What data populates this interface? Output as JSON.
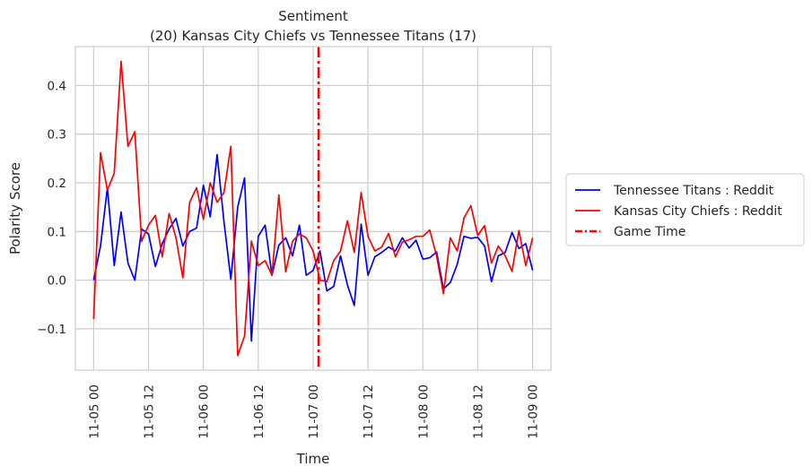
{
  "chart_data": {
    "type": "line",
    "title": "Sentiment",
    "subtitle": "(20) Kansas City Chiefs vs Tennessee Titans (17)",
    "xlabel": "Time",
    "ylabel": "Polarity Score",
    "grid": true,
    "legend_position": "right",
    "x_units": "hours from 11-05 00",
    "xlim": [
      -4,
      100
    ],
    "ylim": [
      -0.185,
      0.48
    ],
    "x_ticks": [
      {
        "value": 0,
        "label": "11-05 00"
      },
      {
        "value": 12,
        "label": "11-05 12"
      },
      {
        "value": 24,
        "label": "11-06 00"
      },
      {
        "value": 36,
        "label": "11-06 12"
      },
      {
        "value": 48,
        "label": "11-07 00"
      },
      {
        "value": 60,
        "label": "11-07 12"
      },
      {
        "value": 72,
        "label": "11-08 00"
      },
      {
        "value": 84,
        "label": "11-08 12"
      },
      {
        "value": 96,
        "label": "11-09 00"
      }
    ],
    "y_ticks": [
      {
        "value": -0.1,
        "label": "−0.1"
      },
      {
        "value": 0.0,
        "label": "0.0"
      },
      {
        "value": 0.1,
        "label": "0.1"
      },
      {
        "value": 0.2,
        "label": "0.2"
      },
      {
        "value": 0.3,
        "label": "0.3"
      },
      {
        "value": 0.4,
        "label": "0.4"
      }
    ],
    "series": [
      {
        "name": "Tennessee Titans : Reddit",
        "color": "#0000ff",
        "points": [
          [
            0,
            0.0
          ],
          [
            1.5,
            0.07
          ],
          [
            3,
            0.19
          ],
          [
            4.5,
            0.03
          ],
          [
            6,
            0.14
          ],
          [
            7.5,
            0.035
          ],
          [
            9,
            0.0
          ],
          [
            10.5,
            0.105
          ],
          [
            12,
            0.095
          ],
          [
            13.5,
            0.028
          ],
          [
            15,
            0.075
          ],
          [
            16.5,
            0.105
          ],
          [
            18,
            0.127
          ],
          [
            19.5,
            0.07
          ],
          [
            21,
            0.1
          ],
          [
            22.5,
            0.107
          ],
          [
            24,
            0.195
          ],
          [
            25.5,
            0.13
          ],
          [
            27,
            0.258
          ],
          [
            28.5,
            0.12
          ],
          [
            30,
            0.002
          ],
          [
            31.5,
            0.15
          ],
          [
            33,
            0.21
          ],
          [
            34.5,
            -0.125
          ],
          [
            36,
            0.09
          ],
          [
            37.5,
            0.113
          ],
          [
            39,
            0.01
          ],
          [
            40.5,
            0.072
          ],
          [
            42,
            0.087
          ],
          [
            43.5,
            0.05
          ],
          [
            45,
            0.113
          ],
          [
            46.5,
            0.01
          ],
          [
            48,
            0.02
          ],
          [
            49.5,
            0.06
          ],
          [
            51,
            -0.022
          ],
          [
            52.5,
            -0.013
          ],
          [
            54,
            0.05
          ],
          [
            55.5,
            -0.01
          ],
          [
            57,
            -0.052
          ],
          [
            58.5,
            0.115
          ],
          [
            60,
            0.01
          ],
          [
            61.5,
            0.048
          ],
          [
            63,
            0.057
          ],
          [
            64.5,
            0.068
          ],
          [
            66,
            0.06
          ],
          [
            67.5,
            0.087
          ],
          [
            69,
            0.066
          ],
          [
            70.5,
            0.082
          ],
          [
            72,
            0.043
          ],
          [
            73.5,
            0.046
          ],
          [
            75,
            0.058
          ],
          [
            76.5,
            -0.018
          ],
          [
            78,
            -0.005
          ],
          [
            79.5,
            0.032
          ],
          [
            81,
            0.09
          ],
          [
            82.5,
            0.086
          ],
          [
            84,
            0.088
          ],
          [
            85.5,
            0.07
          ],
          [
            87,
            -0.003
          ],
          [
            88.5,
            0.05
          ],
          [
            90,
            0.057
          ],
          [
            91.5,
            0.098
          ],
          [
            93,
            0.065
          ],
          [
            94.5,
            0.075
          ],
          [
            96,
            0.02
          ]
        ]
      },
      {
        "name": "Kansas City Chiefs : Reddit",
        "color": "#ff0000",
        "points": [
          [
            0,
            -0.08
          ],
          [
            1.5,
            0.262
          ],
          [
            3,
            0.185
          ],
          [
            4.5,
            0.22
          ],
          [
            6,
            0.45
          ],
          [
            7.5,
            0.275
          ],
          [
            9,
            0.305
          ],
          [
            10.5,
            0.08
          ],
          [
            12,
            0.113
          ],
          [
            13.5,
            0.133
          ],
          [
            15,
            0.048
          ],
          [
            16.5,
            0.137
          ],
          [
            18,
            0.087
          ],
          [
            19.5,
            0.005
          ],
          [
            21,
            0.16
          ],
          [
            22.5,
            0.19
          ],
          [
            24,
            0.125
          ],
          [
            25.5,
            0.2
          ],
          [
            27,
            0.16
          ],
          [
            28.5,
            0.18
          ],
          [
            30,
            0.275
          ],
          [
            31.5,
            -0.155
          ],
          [
            33,
            -0.115
          ],
          [
            34.5,
            0.08
          ],
          [
            36,
            0.03
          ],
          [
            37.5,
            0.04
          ],
          [
            39,
            0.01
          ],
          [
            40.5,
            0.175
          ],
          [
            42,
            0.017
          ],
          [
            43.5,
            0.08
          ],
          [
            45,
            0.095
          ],
          [
            46.5,
            0.087
          ],
          [
            48,
            0.06
          ],
          [
            49.5,
            0.0
          ],
          [
            51,
            -0.003
          ],
          [
            52.5,
            0.04
          ],
          [
            54,
            0.06
          ],
          [
            55.5,
            0.122
          ],
          [
            57,
            0.057
          ],
          [
            58.5,
            0.18
          ],
          [
            60,
            0.09
          ],
          [
            61.5,
            0.06
          ],
          [
            63,
            0.068
          ],
          [
            64.5,
            0.096
          ],
          [
            66,
            0.048
          ],
          [
            67.5,
            0.078
          ],
          [
            69,
            0.083
          ],
          [
            70.5,
            0.09
          ],
          [
            72,
            0.09
          ],
          [
            73.5,
            0.103
          ],
          [
            75,
            0.05
          ],
          [
            76.5,
            -0.028
          ],
          [
            78,
            0.087
          ],
          [
            79.5,
            0.06
          ],
          [
            81,
            0.128
          ],
          [
            82.5,
            0.153
          ],
          [
            84,
            0.092
          ],
          [
            85.5,
            0.112
          ],
          [
            87,
            0.035
          ],
          [
            88.5,
            0.07
          ],
          [
            90,
            0.05
          ],
          [
            91.5,
            0.018
          ],
          [
            93,
            0.102
          ],
          [
            94.5,
            0.03
          ],
          [
            96,
            0.087
          ]
        ]
      }
    ],
    "vline": {
      "name": "Game Time",
      "x": 49.2,
      "color": "#ff0000",
      "style": "dashdot"
    }
  }
}
